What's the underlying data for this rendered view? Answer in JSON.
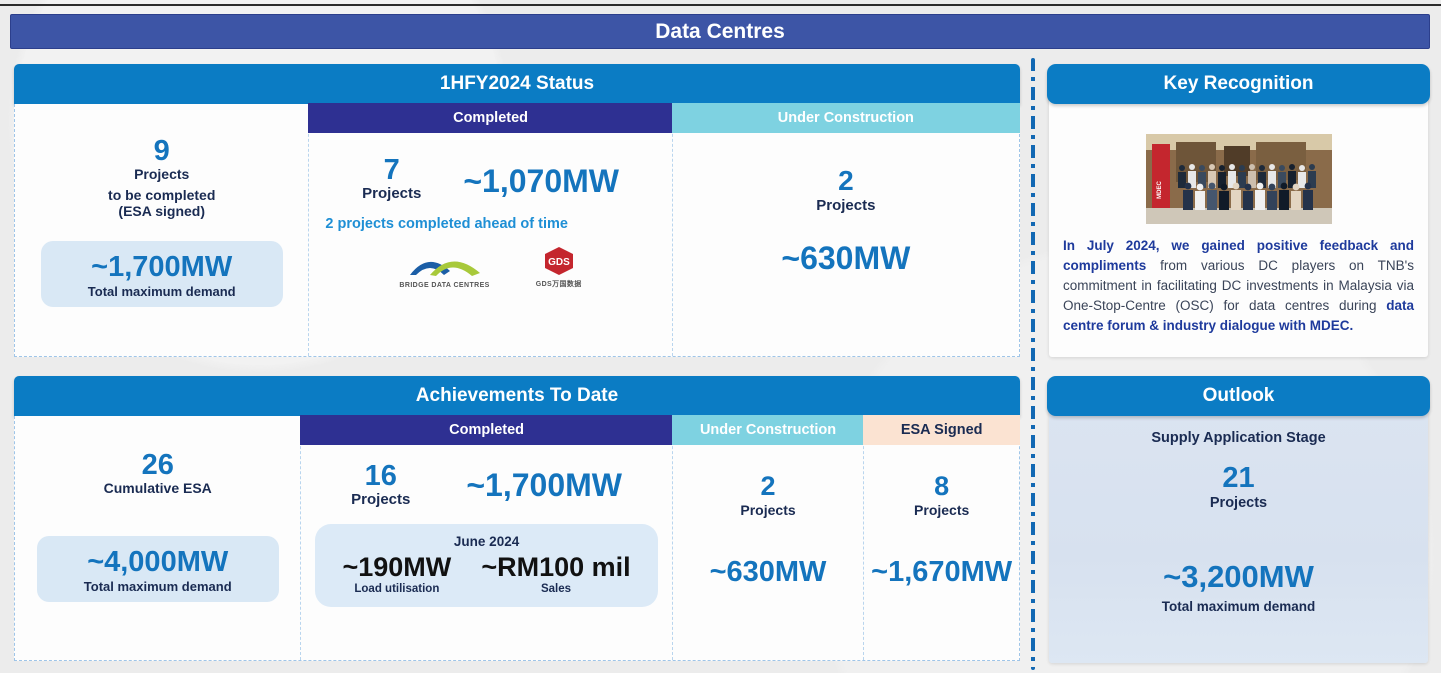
{
  "page": {
    "title": "Data Centres"
  },
  "colors": {
    "banner_indigo": "#3d55a6",
    "section_header_blue": "#0b7cc4",
    "completed_indigo": "#2e3092",
    "under_construction_cyan": "#7ed2e1",
    "esa_signed_peach": "#fbe3d2",
    "stat_pill_blue": "#d9e8f5",
    "number_blue": "#1474bd",
    "navy_text": "#1a2b52",
    "note_blue": "#1e8fd5"
  },
  "status_panel": {
    "title": "1HFY2024 Status",
    "summary": {
      "value": "9",
      "label1": "Projects",
      "label2": "to be completed",
      "label3": "(ESA signed)",
      "pill_value": "~1,700MW",
      "pill_label": "Total maximum demand"
    },
    "completed": {
      "header": "Completed",
      "projects_value": "7",
      "projects_label": "Projects",
      "mw": "~1,070MW",
      "note": "2 projects completed ahead of time",
      "logos": [
        {
          "name": "bridge-data-centres-logo",
          "caption": "BRIDGE DATA CENTRES"
        },
        {
          "name": "gds-logo",
          "caption": "GDS万国数据"
        }
      ]
    },
    "under_construction": {
      "header": "Under Construction",
      "projects_value": "2",
      "projects_label": "Projects",
      "mw": "~630MW"
    }
  },
  "key_recognition": {
    "title": "Key Recognition",
    "photo_alt": "group-photo-mdec-forum",
    "paragraph": [
      {
        "text": "In July 2024, we gained positive feedback and compliments",
        "bold": true
      },
      {
        "text": " from various DC players on TNB's commitment in facilitating DC investments in Malaysia via One-Stop-Centre (OSC) for data centres during ",
        "bold": false
      },
      {
        "text": "data centre forum & industry dialogue with MDEC.",
        "bold": true
      }
    ]
  },
  "achievements_panel": {
    "title": "Achievements To Date",
    "summary": {
      "value": "26",
      "label": "Cumulative ESA",
      "pill_value": "~4,000MW",
      "pill_label": "Total maximum demand"
    },
    "completed": {
      "header": "Completed",
      "projects_value": "16",
      "projects_label": "Projects",
      "mw": "~1,700MW",
      "june_box": {
        "title": "June 2024",
        "items": [
          {
            "value": "~190MW",
            "label": "Load utilisation"
          },
          {
            "value": "~RM100 mil",
            "label": "Sales"
          }
        ]
      }
    },
    "under_construction": {
      "header": "Under Construction",
      "projects_value": "2",
      "projects_label": "Projects",
      "mw": "~630MW"
    },
    "esa_signed": {
      "header": "ESA Signed",
      "projects_value": "8",
      "projects_label": "Projects",
      "mw": "~1,670MW"
    }
  },
  "outlook": {
    "title": "Outlook",
    "stage_label": "Supply Application Stage",
    "projects_value": "21",
    "projects_label": "Projects",
    "mw": "~3,200MW",
    "mw_label": "Total maximum demand"
  }
}
